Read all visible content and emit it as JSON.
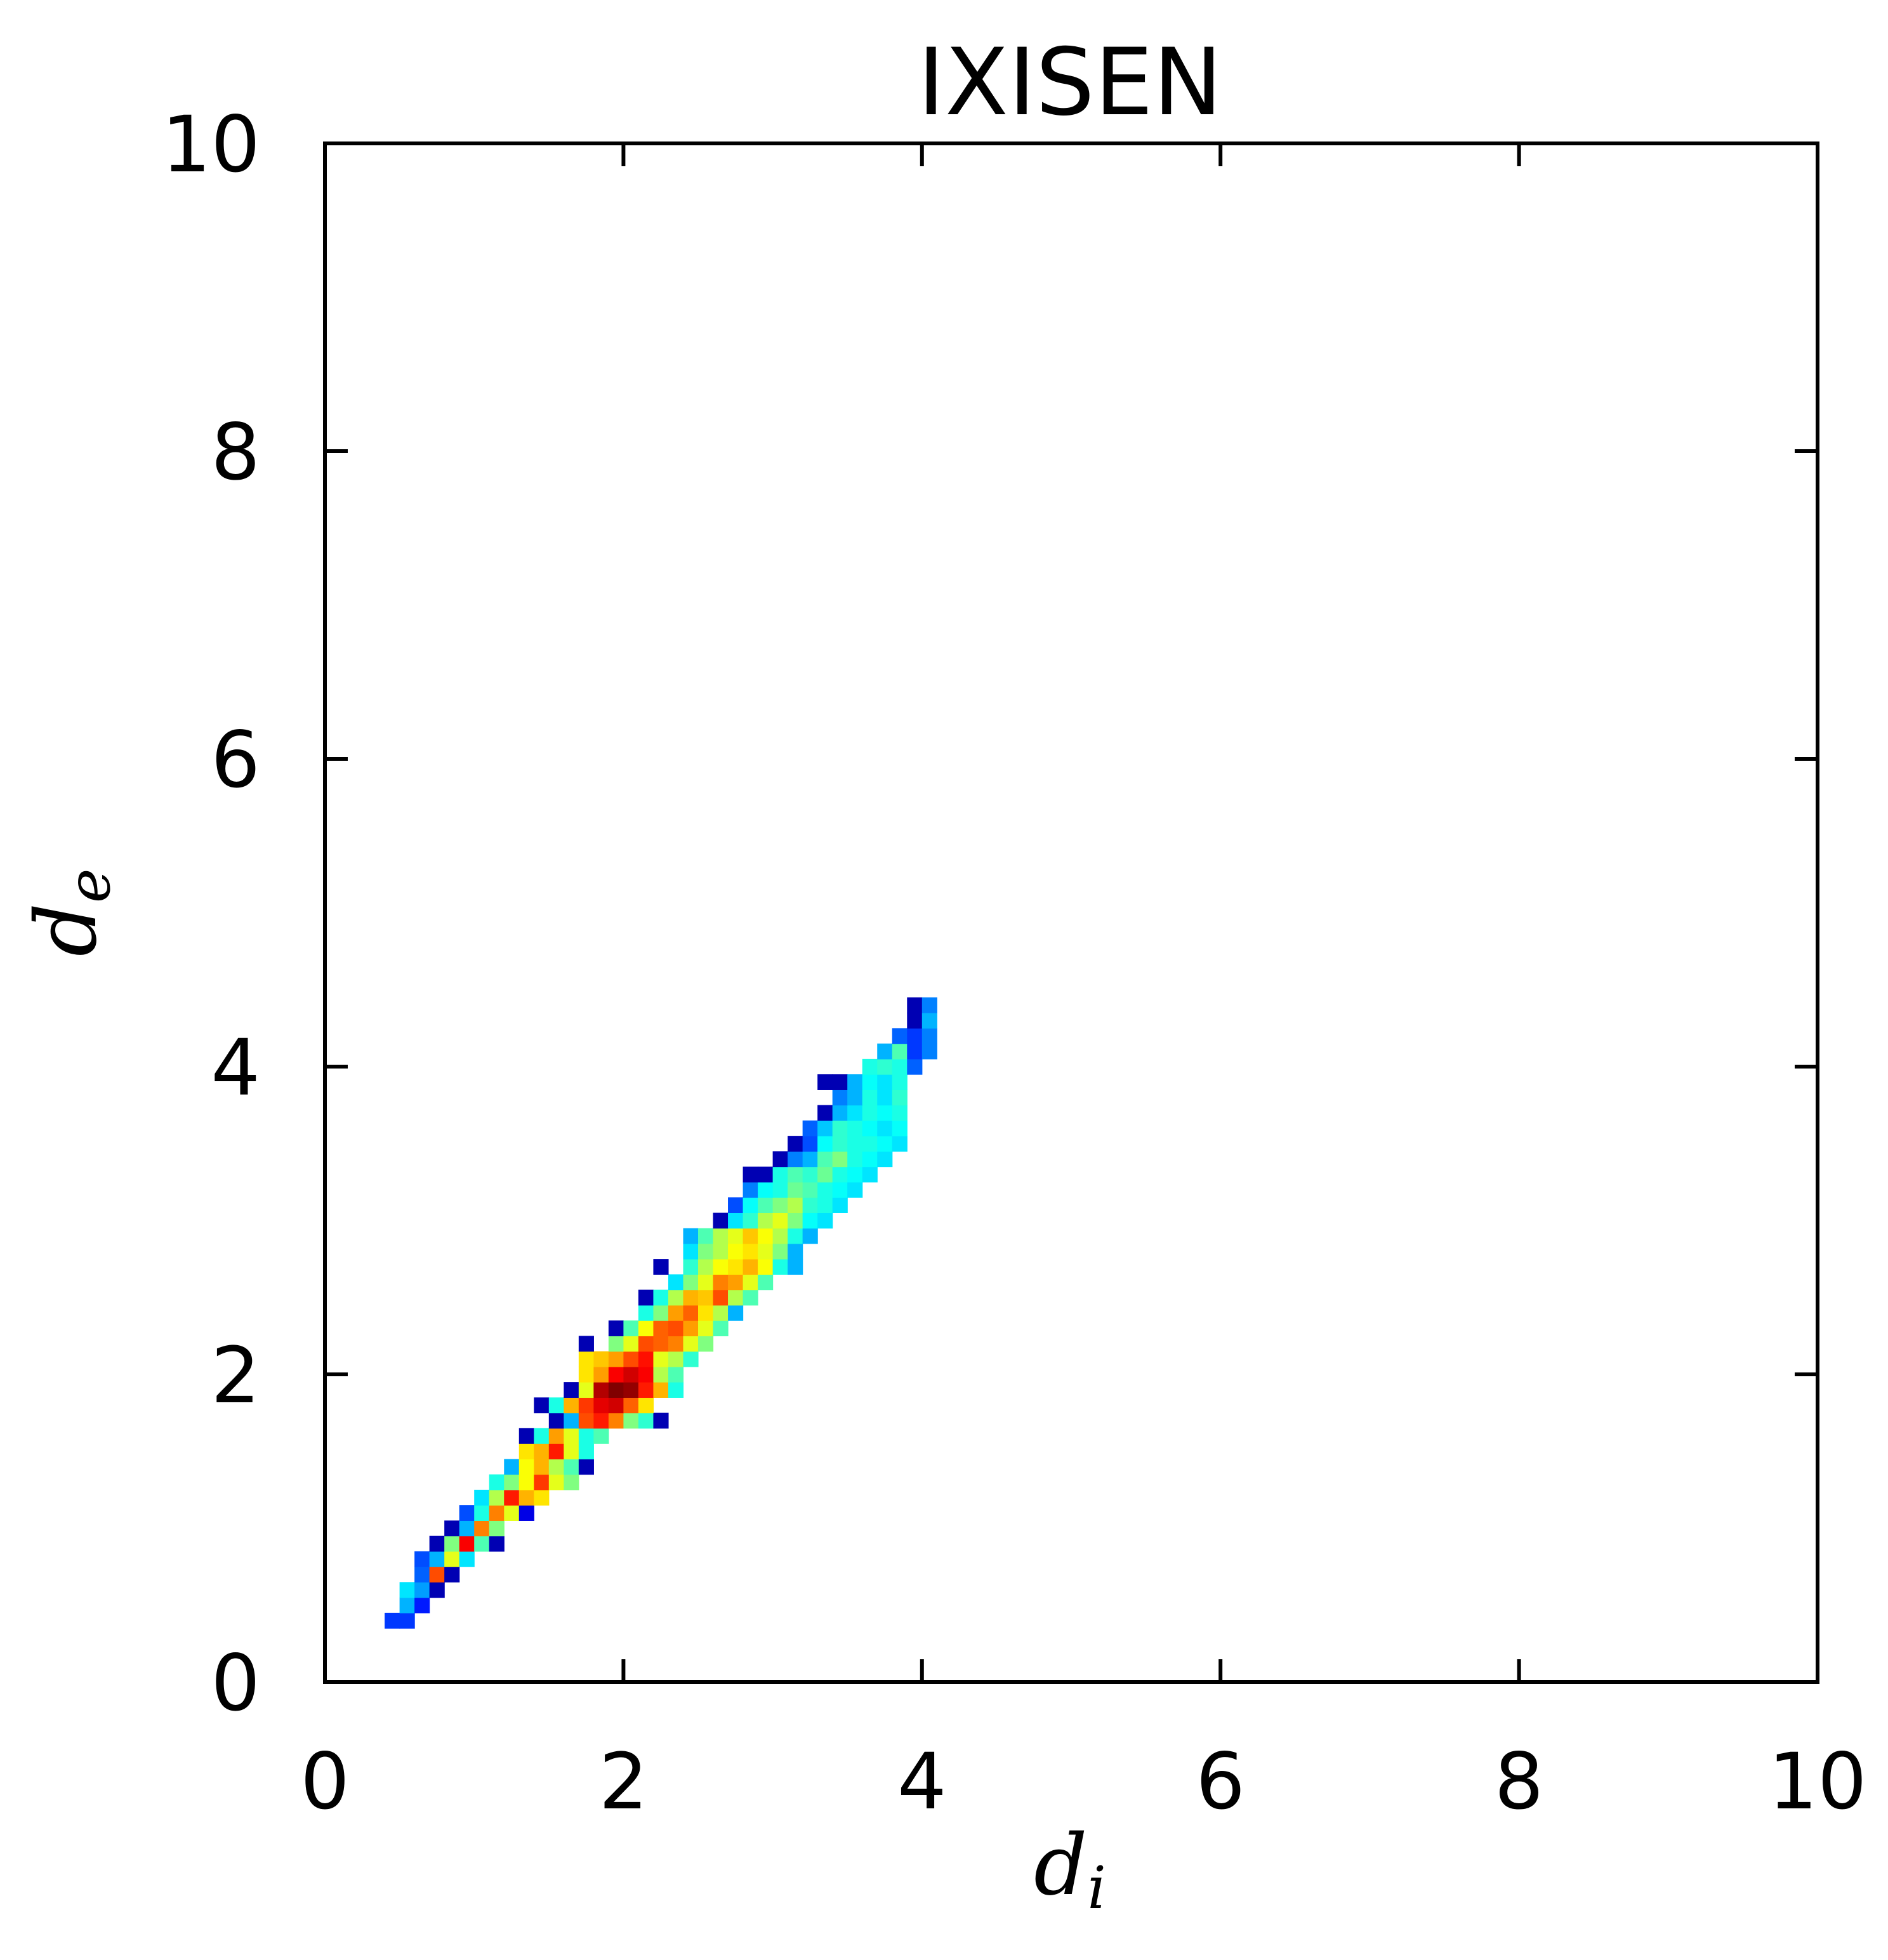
{
  "chart_data": {
    "type": "heatmap",
    "title": "IXISEN",
    "xlabel": "d_i",
    "ylabel": "d_e",
    "xlim": [
      0,
      10
    ],
    "ylim": [
      0,
      10
    ],
    "xticks": [
      "0",
      "2",
      "4",
      "6",
      "8",
      "10"
    ],
    "yticks": [
      "0",
      "2",
      "4",
      "6",
      "8",
      "10"
    ],
    "colormap": "jet",
    "bin_width": 0.1,
    "cells": [
      [
        0.45,
        0.4,
        0.18
      ],
      [
        0.55,
        0.4,
        0.18
      ],
      [
        0.55,
        0.5,
        0.3
      ],
      [
        0.65,
        0.5,
        0.15
      ],
      [
        0.55,
        0.6,
        0.35
      ],
      [
        0.65,
        0.6,
        0.28
      ],
      [
        0.75,
        0.6,
        0.05
      ],
      [
        0.65,
        0.7,
        0.22
      ],
      [
        0.75,
        0.7,
        0.8
      ],
      [
        0.85,
        0.7,
        0.05
      ],
      [
        0.65,
        0.8,
        0.2
      ],
      [
        0.75,
        0.8,
        0.3
      ],
      [
        0.85,
        0.8,
        0.6
      ],
      [
        0.95,
        0.8,
        0.35
      ],
      [
        0.75,
        0.9,
        0.05
      ],
      [
        0.85,
        0.9,
        0.5
      ],
      [
        0.95,
        0.9,
        0.88
      ],
      [
        1.05,
        0.9,
        0.45
      ],
      [
        1.15,
        0.9,
        0.05
      ],
      [
        0.85,
        1.0,
        0.05
      ],
      [
        0.95,
        1.0,
        0.3
      ],
      [
        1.05,
        1.0,
        0.75
      ],
      [
        1.15,
        1.0,
        0.5
      ],
      [
        0.95,
        1.1,
        0.2
      ],
      [
        1.05,
        1.1,
        0.4
      ],
      [
        1.15,
        1.1,
        0.75
      ],
      [
        1.25,
        1.1,
        0.6
      ],
      [
        1.35,
        1.1,
        0.1
      ],
      [
        1.05,
        1.2,
        0.35
      ],
      [
        1.15,
        1.2,
        0.55
      ],
      [
        1.25,
        1.2,
        0.85
      ],
      [
        1.35,
        1.2,
        0.7
      ],
      [
        1.45,
        1.2,
        0.65
      ],
      [
        1.15,
        1.3,
        0.4
      ],
      [
        1.25,
        1.3,
        0.5
      ],
      [
        1.35,
        1.3,
        0.62
      ],
      [
        1.45,
        1.3,
        0.82
      ],
      [
        1.55,
        1.3,
        0.6
      ],
      [
        1.65,
        1.3,
        0.5
      ],
      [
        1.25,
        1.4,
        0.3
      ],
      [
        1.35,
        1.4,
        0.62
      ],
      [
        1.45,
        1.4,
        0.7
      ],
      [
        1.55,
        1.4,
        0.55
      ],
      [
        1.65,
        1.4,
        0.45
      ],
      [
        1.75,
        1.4,
        0.05
      ],
      [
        1.35,
        1.5,
        0.65
      ],
      [
        1.45,
        1.5,
        0.7
      ],
      [
        1.55,
        1.5,
        0.85
      ],
      [
        1.65,
        1.5,
        0.6
      ],
      [
        1.75,
        1.5,
        0.4
      ],
      [
        1.35,
        1.6,
        0.05
      ],
      [
        1.45,
        1.6,
        0.4
      ],
      [
        1.55,
        1.6,
        0.72
      ],
      [
        1.65,
        1.6,
        0.6
      ],
      [
        1.75,
        1.6,
        0.4
      ],
      [
        1.85,
        1.6,
        0.45
      ],
      [
        1.55,
        1.7,
        0.05
      ],
      [
        1.65,
        1.7,
        0.3
      ],
      [
        1.75,
        1.7,
        0.8
      ],
      [
        1.85,
        1.7,
        0.85
      ],
      [
        1.95,
        1.7,
        0.75
      ],
      [
        2.05,
        1.7,
        0.5
      ],
      [
        2.15,
        1.7,
        0.42
      ],
      [
        2.25,
        1.7,
        0.05
      ],
      [
        1.45,
        1.8,
        0.05
      ],
      [
        1.55,
        1.8,
        0.4
      ],
      [
        1.65,
        1.8,
        0.7
      ],
      [
        1.75,
        1.8,
        0.82
      ],
      [
        1.85,
        1.8,
        0.9
      ],
      [
        1.95,
        1.8,
        0.92
      ],
      [
        2.05,
        1.8,
        0.78
      ],
      [
        2.15,
        1.8,
        0.65
      ],
      [
        1.65,
        1.9,
        0.05
      ],
      [
        1.75,
        1.9,
        0.6
      ],
      [
        1.85,
        1.9,
        0.95
      ],
      [
        1.95,
        1.9,
        1.0
      ],
      [
        2.05,
        1.9,
        0.98
      ],
      [
        2.15,
        1.9,
        0.85
      ],
      [
        2.25,
        1.9,
        0.7
      ],
      [
        2.35,
        1.9,
        0.4
      ],
      [
        1.75,
        2.0,
        0.65
      ],
      [
        1.85,
        2.0,
        0.72
      ],
      [
        1.95,
        2.0,
        0.88
      ],
      [
        2.05,
        2.0,
        0.92
      ],
      [
        2.15,
        2.0,
        0.88
      ],
      [
        2.25,
        2.0,
        0.55
      ],
      [
        2.35,
        2.0,
        0.45
      ],
      [
        1.75,
        2.1,
        0.65
      ],
      [
        1.85,
        2.1,
        0.68
      ],
      [
        1.95,
        2.1,
        0.72
      ],
      [
        2.05,
        2.1,
        0.8
      ],
      [
        2.15,
        2.1,
        0.86
      ],
      [
        2.25,
        2.1,
        0.6
      ],
      [
        2.35,
        2.1,
        0.55
      ],
      [
        2.45,
        2.1,
        0.42
      ],
      [
        1.75,
        2.2,
        0.05
      ],
      [
        1.95,
        2.2,
        0.5
      ],
      [
        2.05,
        2.2,
        0.6
      ],
      [
        2.15,
        2.2,
        0.8
      ],
      [
        2.25,
        2.2,
        0.78
      ],
      [
        2.35,
        2.2,
        0.75
      ],
      [
        2.45,
        2.2,
        0.6
      ],
      [
        2.55,
        2.2,
        0.5
      ],
      [
        1.95,
        2.3,
        0.05
      ],
      [
        2.05,
        2.3,
        0.45
      ],
      [
        2.15,
        2.3,
        0.62
      ],
      [
        2.25,
        2.3,
        0.78
      ],
      [
        2.35,
        2.3,
        0.8
      ],
      [
        2.45,
        2.3,
        0.72
      ],
      [
        2.55,
        2.3,
        0.6
      ],
      [
        2.65,
        2.3,
        0.45
      ],
      [
        2.15,
        2.4,
        0.4
      ],
      [
        2.25,
        2.4,
        0.5
      ],
      [
        2.35,
        2.4,
        0.72
      ],
      [
        2.45,
        2.4,
        0.78
      ],
      [
        2.55,
        2.4,
        0.65
      ],
      [
        2.65,
        2.4,
        0.55
      ],
      [
        2.75,
        2.4,
        0.3
      ],
      [
        2.15,
        2.5,
        0.05
      ],
      [
        2.25,
        2.5,
        0.4
      ],
      [
        2.35,
        2.5,
        0.55
      ],
      [
        2.45,
        2.5,
        0.7
      ],
      [
        2.55,
        2.5,
        0.68
      ],
      [
        2.65,
        2.5,
        0.8
      ],
      [
        2.75,
        2.5,
        0.55
      ],
      [
        2.85,
        2.5,
        0.45
      ],
      [
        2.35,
        2.6,
        0.35
      ],
      [
        2.45,
        2.6,
        0.5
      ],
      [
        2.55,
        2.6,
        0.6
      ],
      [
        2.65,
        2.6,
        0.75
      ],
      [
        2.75,
        2.6,
        0.72
      ],
      [
        2.85,
        2.6,
        0.6
      ],
      [
        2.95,
        2.6,
        0.45
      ],
      [
        2.25,
        2.7,
        0.05
      ],
      [
        2.45,
        2.7,
        0.42
      ],
      [
        2.55,
        2.7,
        0.55
      ],
      [
        2.65,
        2.7,
        0.62
      ],
      [
        2.75,
        2.7,
        0.65
      ],
      [
        2.85,
        2.7,
        0.7
      ],
      [
        2.95,
        2.7,
        0.62
      ],
      [
        3.05,
        2.7,
        0.4
      ],
      [
        3.15,
        2.7,
        0.3
      ],
      [
        2.45,
        2.8,
        0.35
      ],
      [
        2.55,
        2.8,
        0.5
      ],
      [
        2.65,
        2.8,
        0.55
      ],
      [
        2.75,
        2.8,
        0.62
      ],
      [
        2.85,
        2.8,
        0.65
      ],
      [
        2.95,
        2.8,
        0.6
      ],
      [
        3.05,
        2.8,
        0.5
      ],
      [
        3.15,
        2.8,
        0.3
      ],
      [
        2.45,
        2.9,
        0.3
      ],
      [
        2.55,
        2.9,
        0.45
      ],
      [
        2.65,
        2.9,
        0.55
      ],
      [
        2.75,
        2.9,
        0.6
      ],
      [
        2.85,
        2.9,
        0.68
      ],
      [
        2.95,
        2.9,
        0.62
      ],
      [
        3.05,
        2.9,
        0.55
      ],
      [
        3.15,
        2.9,
        0.4
      ],
      [
        3.25,
        2.9,
        0.3
      ],
      [
        2.65,
        3.0,
        0.05
      ],
      [
        2.75,
        3.0,
        0.35
      ],
      [
        2.85,
        3.0,
        0.42
      ],
      [
        2.95,
        3.0,
        0.55
      ],
      [
        3.05,
        3.0,
        0.6
      ],
      [
        3.15,
        3.0,
        0.5
      ],
      [
        3.25,
        3.0,
        0.38
      ],
      [
        3.35,
        3.0,
        0.35
      ],
      [
        2.75,
        3.1,
        0.2
      ],
      [
        2.85,
        3.1,
        0.38
      ],
      [
        2.95,
        3.1,
        0.45
      ],
      [
        3.05,
        3.1,
        0.5
      ],
      [
        3.15,
        3.1,
        0.55
      ],
      [
        3.25,
        3.1,
        0.42
      ],
      [
        3.35,
        3.1,
        0.4
      ],
      [
        3.45,
        3.1,
        0.35
      ],
      [
        2.85,
        3.2,
        0.25
      ],
      [
        2.95,
        3.2,
        0.38
      ],
      [
        3.05,
        3.2,
        0.4
      ],
      [
        3.15,
        3.2,
        0.48
      ],
      [
        3.25,
        3.2,
        0.45
      ],
      [
        3.35,
        3.2,
        0.4
      ],
      [
        3.45,
        3.2,
        0.38
      ],
      [
        3.55,
        3.2,
        0.35
      ],
      [
        2.85,
        3.3,
        0.05
      ],
      [
        2.95,
        3.3,
        0.05
      ],
      [
        3.05,
        3.3,
        0.4
      ],
      [
        3.15,
        3.3,
        0.45
      ],
      [
        3.25,
        3.3,
        0.42
      ],
      [
        3.35,
        3.3,
        0.48
      ],
      [
        3.45,
        3.3,
        0.4
      ],
      [
        3.55,
        3.3,
        0.38
      ],
      [
        3.65,
        3.3,
        0.35
      ],
      [
        3.05,
        3.4,
        0.05
      ],
      [
        3.15,
        3.4,
        0.25
      ],
      [
        3.25,
        3.4,
        0.3
      ],
      [
        3.35,
        3.4,
        0.45
      ],
      [
        3.45,
        3.4,
        0.5
      ],
      [
        3.55,
        3.4,
        0.4
      ],
      [
        3.65,
        3.4,
        0.38
      ],
      [
        3.75,
        3.4,
        0.35
      ],
      [
        3.15,
        3.5,
        0.05
      ],
      [
        3.25,
        3.5,
        0.2
      ],
      [
        3.35,
        3.5,
        0.38
      ],
      [
        3.45,
        3.5,
        0.42
      ],
      [
        3.55,
        3.5,
        0.4
      ],
      [
        3.65,
        3.5,
        0.4
      ],
      [
        3.75,
        3.5,
        0.38
      ],
      [
        3.85,
        3.5,
        0.35
      ],
      [
        3.25,
        3.6,
        0.22
      ],
      [
        3.35,
        3.6,
        0.32
      ],
      [
        3.45,
        3.6,
        0.42
      ],
      [
        3.55,
        3.6,
        0.4
      ],
      [
        3.65,
        3.6,
        0.38
      ],
      [
        3.75,
        3.6,
        0.35
      ],
      [
        3.85,
        3.6,
        0.38
      ],
      [
        3.35,
        3.7,
        0.05
      ],
      [
        3.45,
        3.7,
        0.3
      ],
      [
        3.55,
        3.7,
        0.35
      ],
      [
        3.65,
        3.7,
        0.4
      ],
      [
        3.75,
        3.7,
        0.38
      ],
      [
        3.85,
        3.7,
        0.4
      ],
      [
        3.45,
        3.8,
        0.25
      ],
      [
        3.55,
        3.8,
        0.3
      ],
      [
        3.65,
        3.8,
        0.4
      ],
      [
        3.75,
        3.8,
        0.35
      ],
      [
        3.85,
        3.8,
        0.42
      ],
      [
        3.35,
        3.9,
        0.05
      ],
      [
        3.45,
        3.9,
        0.05
      ],
      [
        3.55,
        3.9,
        0.3
      ],
      [
        3.65,
        3.9,
        0.38
      ],
      [
        3.75,
        3.9,
        0.35
      ],
      [
        3.85,
        3.9,
        0.4
      ],
      [
        3.65,
        4.0,
        0.4
      ],
      [
        3.75,
        4.0,
        0.42
      ],
      [
        3.85,
        4.0,
        0.4
      ],
      [
        3.95,
        4.0,
        0.22
      ],
      [
        3.75,
        4.1,
        0.3
      ],
      [
        3.85,
        4.1,
        0.45
      ],
      [
        3.95,
        4.1,
        0.18
      ],
      [
        4.05,
        4.1,
        0.25
      ],
      [
        3.85,
        4.2,
        0.22
      ],
      [
        3.95,
        4.2,
        0.18
      ],
      [
        4.05,
        4.2,
        0.25
      ],
      [
        3.95,
        4.3,
        0.05
      ],
      [
        4.05,
        4.3,
        0.3
      ],
      [
        3.95,
        4.4,
        0.05
      ],
      [
        4.05,
        4.4,
        0.25
      ]
    ]
  }
}
